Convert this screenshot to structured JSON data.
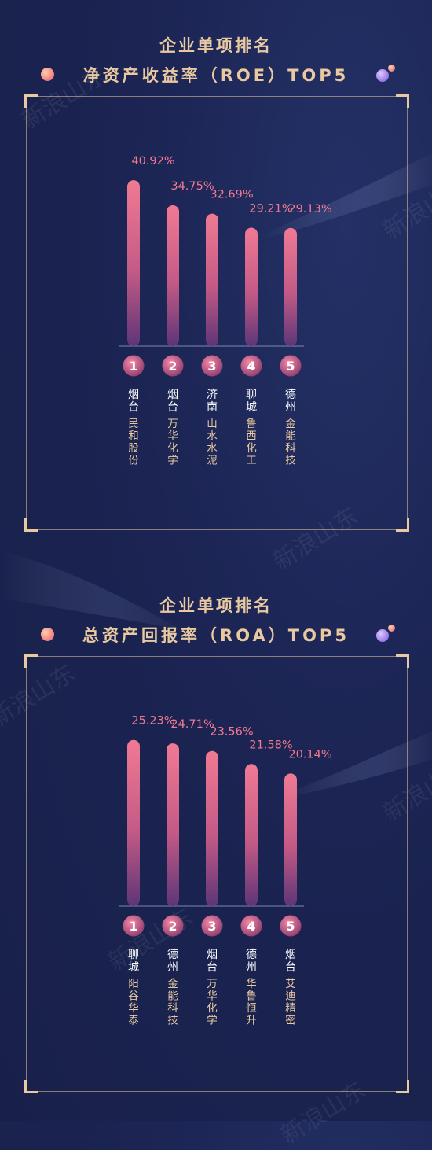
{
  "watermark": "新浪山东",
  "colors": {
    "background": "#1b2452",
    "gold": "#e9c9a0",
    "value_label": "#f27a8e",
    "bar_top": "#f07a93",
    "bar_bottom": "#5d3577",
    "company_text": "#e9c9a0",
    "city_text": "#ffffff"
  },
  "sections": [
    {
      "heading": "企业单项排名",
      "subheading": "净资产收益率（ROE）TOP5",
      "chart_data": {
        "type": "bar",
        "categories": [
          "1",
          "2",
          "3",
          "4",
          "5"
        ],
        "cities": [
          "烟台",
          "烟台",
          "济南",
          "聊城",
          "德州"
        ],
        "companies": [
          "民和股份",
          "万华化学",
          "山水水泥",
          "鲁西化工",
          "金能科技"
        ],
        "values": [
          40.92,
          34.75,
          32.69,
          29.21,
          29.13
        ],
        "value_labels": [
          "40.92%",
          "34.75%",
          "32.69%",
          "29.21%",
          "29.13%"
        ],
        "unit": "%",
        "ylim": [
          0,
          46
        ],
        "title": "净资产收益率（ROE）TOP5",
        "xlabel": "",
        "ylabel": "",
        "grid": false
      }
    },
    {
      "heading": "企业单项排名",
      "subheading": "总资产回报率（ROA）TOP5",
      "chart_data": {
        "type": "bar",
        "categories": [
          "1",
          "2",
          "3",
          "4",
          "5"
        ],
        "cities": [
          "聊城",
          "德州",
          "烟台",
          "德州",
          "烟台"
        ],
        "companies": [
          "阳谷华泰",
          "金能科技",
          "万华化学",
          "华鲁恒升",
          "艾迪精密"
        ],
        "values": [
          25.23,
          24.71,
          23.56,
          21.58,
          20.14
        ],
        "value_labels": [
          "25.23%",
          "24.71%",
          "23.56%",
          "21.58%",
          "20.14%"
        ],
        "unit": "%",
        "ylim": [
          0,
          28.3
        ],
        "title": "总资产回报率（ROA）TOP5",
        "xlabel": "",
        "ylabel": "",
        "grid": false
      }
    }
  ]
}
